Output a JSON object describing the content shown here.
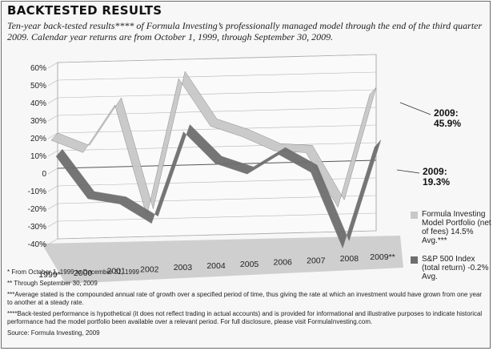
{
  "header": {
    "title": "BACKTESTED RESULTS",
    "subtitle": "Ten-year back-tested results**** of Formula Investing’s professionally managed model through the end of the third quarter 2009. Calendar year returns are from October 1, 1999, through September 30, 2009."
  },
  "chart_data": {
    "type": "line",
    "title": "",
    "xlabel": "",
    "ylabel": "",
    "ylim": [
      -40,
      60
    ],
    "y_ticks": [
      "60%",
      "50%",
      "40%",
      "30%",
      "20%",
      "10%",
      "0",
      "-10%",
      "-20%",
      "-30%",
      "-40%"
    ],
    "y_tick_values": [
      60,
      50,
      40,
      30,
      20,
      10,
      0,
      -10,
      -20,
      -30,
      -40
    ],
    "categories": [
      "1999*",
      "2000",
      "2001",
      "2002",
      "2003",
      "2004",
      "2005",
      "2006",
      "2007",
      "2008",
      "2009**"
    ],
    "series": [
      {
        "name": "Formula Investing Model Portfolio (net of fees) 14.5% Avg.***",
        "color": "#c8c8c8",
        "values": [
          20,
          13,
          40,
          -23,
          55,
          28,
          22,
          14,
          13,
          -18,
          45.9
        ]
      },
      {
        "name": "S&P 500 Index (total return) -0.2% Avg.",
        "color": "#6e6e6e",
        "values": [
          14,
          -10,
          -13,
          -24,
          28,
          10,
          4,
          15,
          5,
          -38,
          19.3
        ]
      }
    ],
    "grid": true,
    "legend_position": "right",
    "end_labels": [
      {
        "year": "2009:",
        "value": "45.9%"
      },
      {
        "year": "2009:",
        "value": "19.3%"
      }
    ]
  },
  "legend": {
    "items": [
      {
        "text": "Formula Investing Model Portfolio (net of fees) 14.5% Avg.***",
        "color": "#c8c8c8"
      },
      {
        "text": "S&P 500 Index (total return) -0.2% Avg.",
        "color": "#6e6e6e"
      }
    ]
  },
  "footnotes": [
    "* From October 1, 1999 to December 31, 1999",
    "** Through September 30, 2009",
    "***Average stated is the compounded annual rate of growth over a specified period of time, thus giving the rate at which an investment would have grown from one year to another at a steady rate.",
    "****Back-tested performance is hypothetical (it does not reflect trading in actual accounts) and is provided for informational and illustrative purposes to indicate historical performance had the model portfolio been available over a relevant period. For full disclosure, please visit FormulaInvesting.com.",
    "Source: Formula Investing, 2009"
  ]
}
